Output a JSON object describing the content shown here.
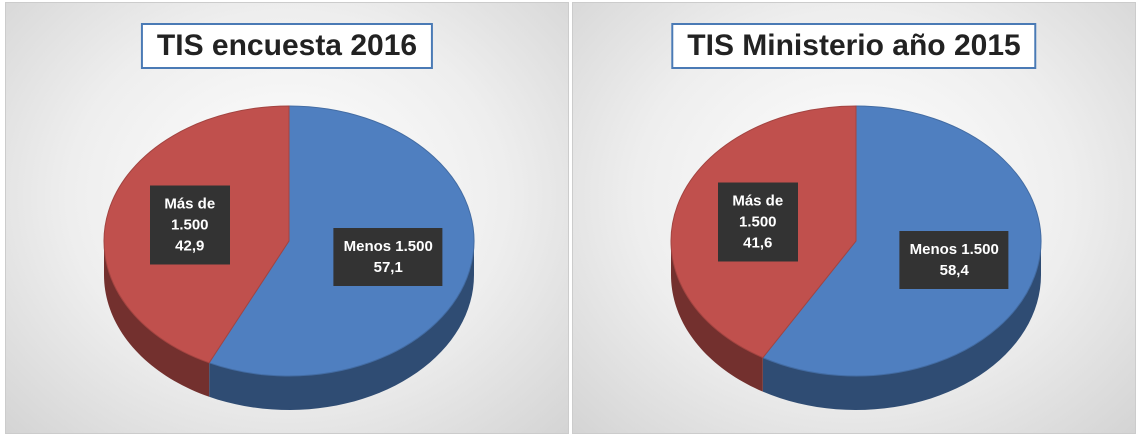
{
  "chart_data": [
    {
      "type": "pie",
      "title": "TIS encuesta 2016",
      "categories": [
        "Menos 1.500",
        "Más de 1.500"
      ],
      "values": [
        57.1,
        42.9
      ],
      "value_labels": [
        "57,1",
        "42,9"
      ],
      "colors": [
        "#4f7fc0",
        "#c0504d"
      ]
    },
    {
      "type": "pie",
      "title": "TIS Ministerio año 2015",
      "categories": [
        "Menos 1.500",
        "Más de 1.500"
      ],
      "values": [
        58.4,
        41.6
      ],
      "value_labels": [
        "58,4",
        "41,6"
      ],
      "colors": [
        "#4f7fc0",
        "#c0504d"
      ]
    }
  ]
}
